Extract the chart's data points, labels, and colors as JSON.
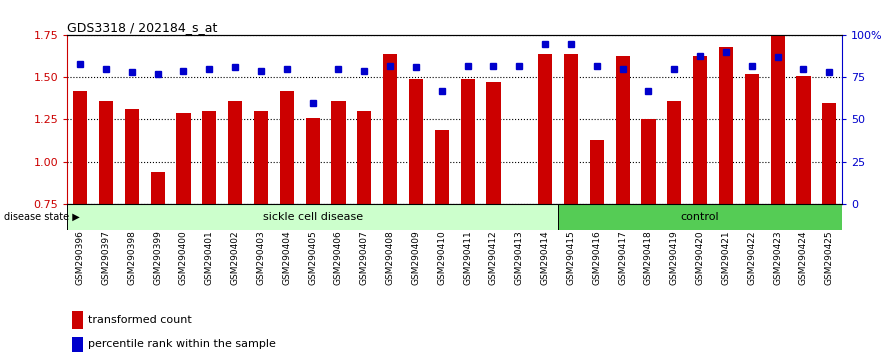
{
  "title": "GDS3318 / 202184_s_at",
  "categories": [
    "GSM290396",
    "GSM290397",
    "GSM290398",
    "GSM290399",
    "GSM290400",
    "GSM290401",
    "GSM290402",
    "GSM290403",
    "GSM290404",
    "GSM290405",
    "GSM290406",
    "GSM290407",
    "GSM290408",
    "GSM290409",
    "GSM290410",
    "GSM290411",
    "GSM290412",
    "GSM290413",
    "GSM290414",
    "GSM290415",
    "GSM290416",
    "GSM290417",
    "GSM290418",
    "GSM290419",
    "GSM290420",
    "GSM290421",
    "GSM290422",
    "GSM290423",
    "GSM290424",
    "GSM290425"
  ],
  "bar_values": [
    1.42,
    1.36,
    1.31,
    0.94,
    1.29,
    1.3,
    1.36,
    1.3,
    1.42,
    1.26,
    1.36,
    1.3,
    1.64,
    1.49,
    1.19,
    1.49,
    1.47,
    0.75,
    1.64,
    1.64,
    1.13,
    1.63,
    1.25,
    1.36,
    1.63,
    1.68,
    1.52,
    1.75,
    1.51,
    1.35
  ],
  "percentile_values": [
    83,
    80,
    78,
    77,
    79,
    80,
    81,
    79,
    80,
    60,
    80,
    79,
    82,
    81,
    67,
    82,
    82,
    82,
    95,
    95,
    82,
    80,
    67,
    80,
    88,
    90,
    82,
    87,
    80,
    78
  ],
  "sickle_cell_count": 19,
  "control_count": 11,
  "ylim_left": [
    0.75,
    1.75
  ],
  "ylim_right": [
    0,
    100
  ],
  "yticks_left": [
    0.75,
    1.0,
    1.25,
    1.5,
    1.75
  ],
  "yticks_right": [
    0,
    25,
    50,
    75,
    100
  ],
  "ytick_labels_right": [
    "0",
    "25",
    "50",
    "75",
    "100%"
  ],
  "bar_color": "#cc0000",
  "dot_color": "#0000cc",
  "sickle_color": "#ccffcc",
  "control_color": "#55cc55",
  "label_transformed": "transformed count",
  "label_percentile": "percentile rank within the sample",
  "disease_state_label": "disease state",
  "sickle_label": "sickle cell disease",
  "control_label": "control"
}
